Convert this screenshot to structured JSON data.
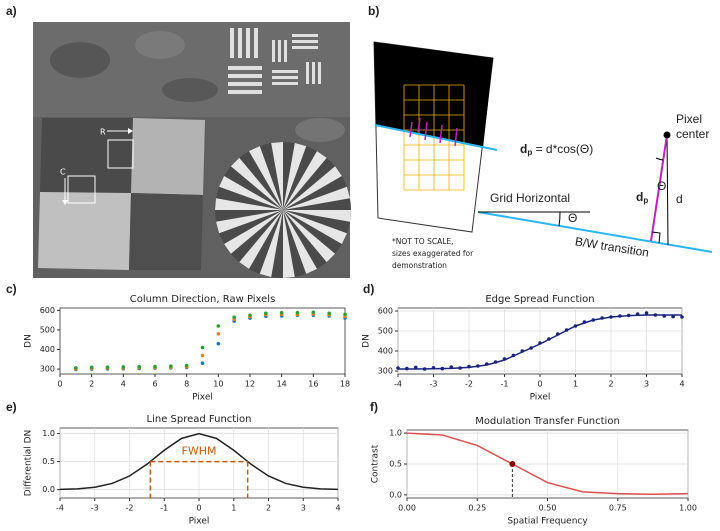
{
  "panel_a": {
    "label": "a)",
    "row_marker": "R",
    "column_marker": "C"
  },
  "panel_b": {
    "label": "b)",
    "equation": {
      "symbol": "d",
      "subscript": "p",
      "rest": " = d*cos(Θ)"
    },
    "pixel_center": [
      "Pixel",
      "center"
    ],
    "grid_horizontal": "Grid Horizontal",
    "angle_labels": [
      "Θ",
      "Θ"
    ],
    "bw_transition": "B/W transition",
    "dp_label": {
      "symbol": "d",
      "subscript": "p"
    },
    "d_label": "d",
    "note": [
      "*NOT TO SCALE,",
      "sizes exaggerated for",
      "demonstration"
    ]
  },
  "chart_data": [
    {
      "panel_label": "c)",
      "type": "scatter",
      "title": "Column Direction, Raw Pixels",
      "x_label": "Pixel",
      "y_label": "DN",
      "x": [
        1,
        2,
        3,
        4,
        5,
        6,
        7,
        8,
        9,
        10,
        11,
        12,
        13,
        14,
        15,
        16,
        17,
        18
      ],
      "series": [
        {
          "color": "#1f77b4",
          "values": [
            298,
            300,
            301,
            302,
            303,
            305,
            306,
            308,
            330,
            430,
            545,
            560,
            570,
            572,
            575,
            575,
            572,
            560
          ]
        },
        {
          "color": "#ff7f0e",
          "values": [
            302,
            305,
            306,
            306,
            308,
            309,
            310,
            312,
            370,
            480,
            555,
            568,
            578,
            580,
            580,
            582,
            578,
            570
          ]
        },
        {
          "color": "#2ca02c",
          "values": [
            306,
            309,
            310,
            311,
            312,
            313,
            315,
            318,
            410,
            520,
            565,
            575,
            585,
            588,
            588,
            590,
            585,
            580
          ]
        }
      ],
      "xlim": [
        0,
        18
      ],
      "ylim": [
        275,
        612
      ],
      "xticks": [
        0,
        2,
        4,
        6,
        8,
        10,
        12,
        14,
        16,
        18
      ],
      "yticks": [
        300,
        400,
        500,
        600
      ],
      "grid": false
    },
    {
      "panel_label": "d)",
      "type": "scatter",
      "title": "Edge Spread Function",
      "x_label": "Pixel",
      "y_label": "DN",
      "series": [
        {
          "mode": "markers",
          "color": "#1a237e",
          "x": [
            -4,
            -3.75,
            -3.5,
            -3.25,
            -3,
            -2.75,
            -2.5,
            -2.25,
            -2,
            -1.75,
            -1.5,
            -1.25,
            -1,
            -0.75,
            -0.5,
            -0.25,
            0,
            0.25,
            0.5,
            0.75,
            1,
            1.25,
            1.5,
            1.75,
            2,
            2.25,
            2.5,
            2.75,
            3,
            3.25,
            3.5,
            3.75,
            4
          ],
          "values": [
            315,
            312,
            318,
            310,
            316,
            312,
            320,
            315,
            322,
            325,
            335,
            345,
            360,
            378,
            400,
            415,
            440,
            460,
            485,
            505,
            525,
            545,
            555,
            565,
            570,
            575,
            578,
            585,
            590,
            580,
            575,
            572,
            570
          ]
        },
        {
          "mode": "line",
          "color": "#1a237e",
          "x": [
            -4,
            -3.5,
            -3,
            -2.5,
            -2,
            -1.5,
            -1,
            -0.5,
            0,
            0.5,
            1,
            1.5,
            2,
            2.5,
            3,
            3.5,
            4
          ],
          "values": [
            310,
            310,
            311,
            313,
            318,
            330,
            355,
            395,
            435,
            480,
            525,
            555,
            570,
            577,
            580,
            580,
            580
          ]
        }
      ],
      "xlim": [
        -4,
        4
      ],
      "ylim": [
        285,
        615
      ],
      "xticks": [
        -4,
        -3,
        -2,
        -1,
        0,
        1,
        2,
        3,
        4
      ],
      "yticks": [
        300,
        400,
        500,
        600
      ],
      "grid": true
    },
    {
      "panel_label": "e)",
      "type": "line",
      "title": "Line Spread Function",
      "x_label": "Pixel",
      "y_label": "Differential DN",
      "x": [
        -4,
        -3.5,
        -3,
        -2.5,
        -2,
        -1.5,
        -1,
        -0.5,
        0,
        0.5,
        1,
        1.5,
        2,
        2.5,
        3,
        3.5,
        4
      ],
      "series": [
        {
          "color": "#222222",
          "values": [
            0.004,
            0.013,
            0.042,
            0.11,
            0.243,
            0.452,
            0.702,
            0.915,
            1,
            0.915,
            0.702,
            0.452,
            0.243,
            0.11,
            0.042,
            0.013,
            0.004
          ]
        }
      ],
      "xlim": [
        -4,
        4
      ],
      "ylim": [
        -0.15,
        1.1
      ],
      "xticks": [
        -4,
        -3,
        -2,
        -1,
        0,
        1,
        2,
        3,
        4
      ],
      "yticks": [
        {
          "value": 0,
          "label": "0.0"
        },
        {
          "value": 0.5,
          "label": "0.5"
        },
        {
          "value": 1,
          "label": "1.0"
        }
      ],
      "grid": true,
      "fwhm": {
        "label": "FWHM",
        "x": [
          -1.4,
          1.4
        ],
        "y": 0.5,
        "color": "#c55a11"
      }
    },
    {
      "panel_label": "f)",
      "type": "line",
      "title": "Modulation Transfer Function",
      "x_label": "Spatial Frequency",
      "y_label": "Contrast",
      "x": [
        0,
        0.125,
        0.25,
        0.375,
        0.5,
        0.625,
        0.75,
        0.875,
        1
      ],
      "series": [
        {
          "color": "#e05050",
          "values": [
            1,
            0.97,
            0.8,
            0.5,
            0.2,
            0.05,
            0.02,
            0.01,
            0.02
          ]
        }
      ],
      "xlim": [
        0,
        1
      ],
      "ylim": [
        -0.05,
        1.05
      ],
      "xticks": [
        {
          "value": 0,
          "label": "0.00"
        },
        {
          "value": 0.25,
          "label": "0.25"
        },
        {
          "value": 0.5,
          "label": "0.50"
        },
        {
          "value": 0.75,
          "label": "0.75"
        },
        {
          "value": 1,
          "label": "1.00"
        }
      ],
      "yticks": [
        {
          "value": 0,
          "label": "0.0"
        },
        {
          "value": 0.5,
          "label": "0.5"
        },
        {
          "value": 1,
          "label": "1.0"
        }
      ],
      "grid": true,
      "highlight": {
        "x": 0.375,
        "y": 0.5,
        "color": "#8b0000"
      }
    }
  ]
}
